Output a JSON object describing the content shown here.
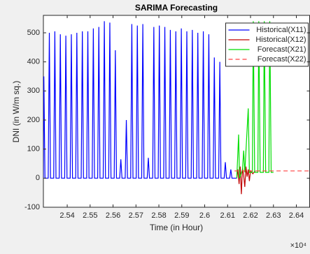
{
  "chart_data": {
    "type": "line",
    "title": "SARIMA Forecasting",
    "xlabel": "Time (in Hour)",
    "ylabel": "DNI (in W/m sq.)",
    "x_exponent_label": "×10⁴",
    "xlim": [
      2.5296,
      2.6458
    ],
    "ylim": [
      -100,
      560
    ],
    "xticks": [
      2.54,
      2.55,
      2.56,
      2.57,
      2.58,
      2.59,
      2.6,
      2.61,
      2.62,
      2.63,
      2.64
    ],
    "yticks": [
      -100,
      0,
      100,
      200,
      300,
      400,
      500
    ],
    "legend": "upper right",
    "series": [
      {
        "name": "Historical(X11)",
        "color": "#0000ff",
        "dash": "solid",
        "x": [
          2.5296,
          2.5298,
          2.5303,
          2.5317,
          2.5322,
          2.5327,
          2.5341,
          2.5346,
          2.5351,
          2.5365,
          2.537,
          2.5375,
          2.5389,
          2.5394,
          2.5399,
          2.5413,
          2.5418,
          2.5423,
          2.5437,
          2.5442,
          2.5447,
          2.5461,
          2.5466,
          2.5471,
          2.5485,
          2.549,
          2.5495,
          2.5509,
          2.5514,
          2.5519,
          2.5533,
          2.5538,
          2.5543,
          2.5557,
          2.5562,
          2.5567,
          2.5581,
          2.5586,
          2.5591,
          2.5605,
          2.561,
          2.5615,
          2.5629,
          2.5634,
          2.5639,
          2.5653,
          2.5658,
          2.5663,
          2.5677,
          2.5682,
          2.5687,
          2.5701,
          2.5706,
          2.5711,
          2.5725,
          2.573,
          2.5735,
          2.5749,
          2.5754,
          2.5759,
          2.5773,
          2.5778,
          2.5783,
          2.5797,
          2.5802,
          2.5807,
          2.5821,
          2.5826,
          2.5831,
          2.5845,
          2.585,
          2.5855,
          2.5869,
          2.5874,
          2.5879,
          2.5893,
          2.5898,
          2.5903,
          2.5917,
          2.5922,
          2.5927,
          2.5941,
          2.5946,
          2.5951,
          2.5965,
          2.597,
          2.5975,
          2.5989,
          2.5994,
          2.5999,
          2.6013,
          2.6018,
          2.6023,
          2.6037,
          2.6042,
          2.6047,
          2.6061,
          2.6066,
          2.6071,
          2.6085,
          2.609,
          2.6095,
          2.6109,
          2.6114,
          2.6119,
          2.614
        ],
        "values": [
          0,
          350,
          0,
          0,
          500,
          0,
          0,
          505,
          0,
          0,
          495,
          0,
          0,
          490,
          0,
          0,
          495,
          0,
          0,
          500,
          0,
          0,
          505,
          0,
          0,
          505,
          0,
          0,
          515,
          0,
          0,
          520,
          0,
          0,
          540,
          0,
          0,
          535,
          0,
          0,
          440,
          0,
          0,
          65,
          0,
          0,
          200,
          0,
          0,
          530,
          0,
          0,
          525,
          0,
          0,
          530,
          0,
          0,
          70,
          0,
          0,
          520,
          0,
          0,
          525,
          0,
          0,
          520,
          0,
          0,
          510,
          0,
          0,
          505,
          0,
          0,
          515,
          0,
          0,
          505,
          0,
          0,
          510,
          0,
          0,
          500,
          0,
          0,
          505,
          0,
          0,
          495,
          0,
          0,
          415,
          0,
          0,
          400,
          0,
          0,
          55,
          0,
          0,
          30,
          0,
          0
        ]
      },
      {
        "name": "Historical(X12)",
        "color": "#c00000",
        "dash": "solid",
        "x": [
          2.614,
          2.6145,
          2.615,
          2.6155,
          2.616,
          2.6165,
          2.617,
          2.6175,
          2.618,
          2.6185,
          2.619,
          2.6195,
          2.62,
          2.621,
          2.622
        ],
        "values": [
          0,
          30,
          -20,
          40,
          -55,
          35,
          10,
          -30,
          40,
          5,
          30,
          -10,
          25,
          15,
          25
        ]
      },
      {
        "name": "Forecast(X21)",
        "color": "#00dd00",
        "dash": "solid",
        "x": [
          2.614,
          2.6148,
          2.6152,
          2.6165,
          2.617,
          2.6175,
          2.619,
          2.6195,
          2.6208,
          2.6212,
          2.6218,
          2.6232,
          2.6236,
          2.6242,
          2.6256,
          2.626,
          2.6266,
          2.628,
          2.6284,
          2.629,
          2.63
        ],
        "values": [
          0,
          150,
          0,
          30,
          95,
          20,
          240,
          20,
          20,
          540,
          20,
          20,
          540,
          20,
          20,
          540,
          20,
          20,
          540,
          20,
          20
        ]
      },
      {
        "name": "Forecast(X22)",
        "color": "#ff4040",
        "dash": "dashed",
        "x": [
          2.613,
          2.6458
        ],
        "values": [
          25,
          25
        ]
      }
    ]
  }
}
